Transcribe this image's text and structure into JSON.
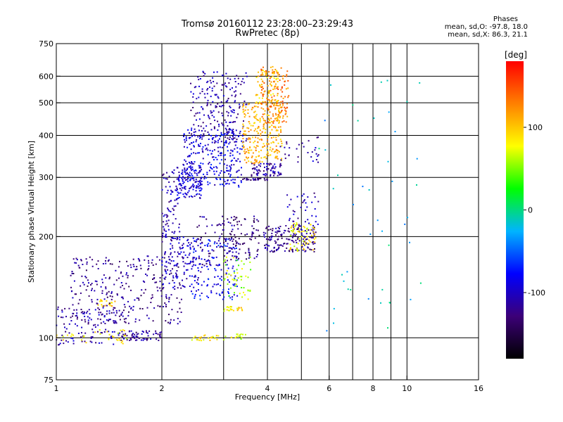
{
  "chart_data": {
    "type": "scatter",
    "title": "Tromsø 20160112 23:28:00–23:29:43",
    "subtitle": "RwPretec (8p)",
    "xlabel": "Frequency [MHz]",
    "ylabel": "Stationary phase Virtual Height [km]",
    "x_scale": "log",
    "y_scale": "log",
    "xlim": [
      1,
      16
    ],
    "ylim": [
      75,
      750
    ],
    "x_ticks": [
      "1",
      "2",
      "4",
      "6",
      "8",
      "10",
      "16"
    ],
    "x_tick_values": [
      1,
      2,
      4,
      6,
      8,
      10,
      16
    ],
    "y_ticks": [
      "750",
      "600",
      "500",
      "400",
      "300",
      "200",
      "100",
      "75"
    ],
    "y_tick_values": [
      750,
      600,
      500,
      400,
      300,
      200,
      100,
      75
    ],
    "x_grid": [
      2,
      3,
      4,
      5,
      6,
      7,
      8,
      9,
      10
    ],
    "y_grid": [
      600,
      500,
      400,
      300,
      200,
      100
    ],
    "grid": true,
    "colorbar": {
      "label": "[deg]",
      "ticks": [
        "100",
        "0",
        "-100"
      ],
      "tick_values": [
        100,
        0,
        -100
      ],
      "range": [
        -180,
        180
      ],
      "colors": [
        "#000000",
        "#3c0078",
        "#0000ff",
        "#00b4ff",
        "#00ff00",
        "#ffff00",
        "#ff8000",
        "#ff0000"
      ]
    },
    "phases_header": "Phases",
    "phases_lines": [
      "mean, sd,O: -97.8, 18.0",
      "mean, sd,X: 86.3, 21.1"
    ],
    "clusters": [
      {
        "f": [
          1.0,
          1.5
        ],
        "h": [
          95,
          125
        ],
        "phase": -110,
        "n": 110
      },
      {
        "f": [
          1.5,
          2.0
        ],
        "h": [
          98,
          105
        ],
        "phase": -115,
        "n": 70
      },
      {
        "f": [
          1.0,
          1.6
        ],
        "h": [
          96,
          106
        ],
        "phase": 80,
        "n": 35
      },
      {
        "f": [
          1.3,
          1.55
        ],
        "h": [
          124,
          130
        ],
        "phase": 100,
        "n": 18
      },
      {
        "f": [
          1.1,
          2.3
        ],
        "h": [
          110,
          175
        ],
        "phase": -120,
        "n": 300
      },
      {
        "f": [
          2.0,
          2.6
        ],
        "h": [
          140,
          200
        ],
        "phase": -100,
        "n": 120
      },
      {
        "f": [
          2.0,
          2.25
        ],
        "h": [
          190,
          320
        ],
        "phase": -110,
        "n": 90
      },
      {
        "f": [
          2.2,
          2.6
        ],
        "h": [
          260,
          330
        ],
        "phase": -95,
        "n": 130
      },
      {
        "f": [
          2.3,
          3.4
        ],
        "h": [
          280,
          420
        ],
        "phase": -90,
        "n": 260
      },
      {
        "f": [
          2.4,
          3.5
        ],
        "h": [
          380,
          620
        ],
        "phase": -110,
        "n": 220
      },
      {
        "f": [
          2.4,
          3.3
        ],
        "h": [
          130,
          200
        ],
        "phase": -80,
        "n": 140
      },
      {
        "f": [
          2.5,
          3.2
        ],
        "h": [
          160,
          230
        ],
        "phase": -120,
        "n": 60
      },
      {
        "f": [
          3.0,
          3.8
        ],
        "h": [
          170,
          230
        ],
        "phase": -130,
        "n": 90
      },
      {
        "f": [
          3.0,
          3.6
        ],
        "h": [
          130,
          175
        ],
        "phase": 60,
        "n": 50
      },
      {
        "f": [
          3.0,
          3.4
        ],
        "h": [
          120,
          124
        ],
        "phase": 90,
        "n": 22
      },
      {
        "f": [
          2.4,
          2.9
        ],
        "h": [
          98,
          102
        ],
        "phase": 90,
        "n": 26
      },
      {
        "f": [
          3.0,
          3.5
        ],
        "h": [
          98,
          103
        ],
        "phase": 70,
        "n": 16
      },
      {
        "f": [
          3.6,
          4.4
        ],
        "h": [
          300,
          330
        ],
        "phase": -110,
        "n": 70
      },
      {
        "f": [
          3.4,
          4.0
        ],
        "h": [
          294,
          298
        ],
        "phase": -125,
        "n": 25
      },
      {
        "f": [
          3.4,
          4.4
        ],
        "h": [
          330,
          500
        ],
        "phase": 110,
        "n": 260
      },
      {
        "f": [
          3.8,
          4.6
        ],
        "h": [
          430,
          640
        ],
        "phase": 130,
        "n": 150
      },
      {
        "f": [
          3.7,
          4.3
        ],
        "h": [
          500,
          640
        ],
        "phase": 100,
        "n": 60
      },
      {
        "f": [
          3.9,
          5.5
        ],
        "h": [
          180,
          215
        ],
        "phase": -120,
        "n": 170
      },
      {
        "f": [
          4.6,
          5.5
        ],
        "h": [
          180,
          220
        ],
        "phase": 80,
        "n": 60
      },
      {
        "f": [
          4.5,
          5.6
        ],
        "h": [
          215,
          270
        ],
        "phase": -110,
        "n": 40
      },
      {
        "f": [
          4.3,
          5.6
        ],
        "h": [
          330,
          400
        ],
        "phase": -110,
        "n": 30
      },
      {
        "f": [
          5.6,
          11.0
        ],
        "h": [
          100,
          600
        ],
        "phase": -20,
        "n": 45
      }
    ]
  }
}
